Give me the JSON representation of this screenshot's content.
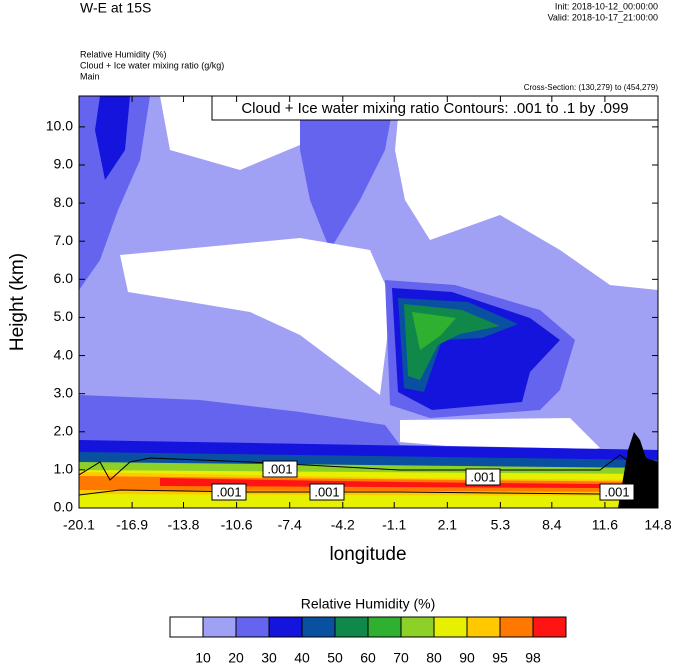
{
  "chart_data": {
    "type": "contour",
    "title": "W-E at 15S",
    "init": "Init: 2018-10-12_00:00:00",
    "valid": "Valid: 2018-10-17_21:00:00",
    "fields": [
      "Relative Humidity   (%)",
      "Cloud + Ice water mixing ratio   (g/kg)",
      "Main"
    ],
    "cross_section": "Cross-Section: (130,279) to (454,279)",
    "contour_info": "Cloud + Ice water mixing ratio Contours: .001 to .1 by .099",
    "contour_labels": [
      ".001",
      ".001",
      ".001",
      ".001",
      ".001"
    ],
    "y_label": "Height (km)",
    "x_label": "longitude",
    "xlim": [
      -20.1,
      14.8
    ],
    "xticks": [
      -20.1,
      -16.9,
      -13.8,
      -10.6,
      -7.4,
      -4.2,
      -1.1,
      2.1,
      5.3,
      8.4,
      11.6,
      14.8
    ],
    "ylim": [
      0,
      10.81
    ],
    "yticks": [
      {
        "value": 0,
        "label": "0.0"
      },
      {
        "value": 1,
        "label": "1.0"
      },
      {
        "value": 2,
        "label": "2.0"
      },
      {
        "value": 3,
        "label": "3.0"
      },
      {
        "value": 4,
        "label": "4.0"
      },
      {
        "value": 5,
        "label": "5.0"
      },
      {
        "value": 6,
        "label": "6.0"
      },
      {
        "value": 7,
        "label": "7.0"
      },
      {
        "value": 8,
        "label": "8.0"
      },
      {
        "value": 9,
        "label": "9.0"
      },
      {
        "value": 10,
        "label": "10.0"
      }
    ],
    "colorbar_title": "Relative Humidity  (%)",
    "levels": [
      10,
      20,
      30,
      40,
      50,
      60,
      70,
      80,
      90,
      95,
      98
    ],
    "colors": [
      "#ffffff",
      "#a0a0f5",
      "#6464ee",
      "#1414dc",
      "#0a50a0",
      "#10884a",
      "#30b030",
      "#8cd028",
      "#e6f000",
      "#ffc800",
      "#ff7800",
      "#ff1414"
    ]
  }
}
